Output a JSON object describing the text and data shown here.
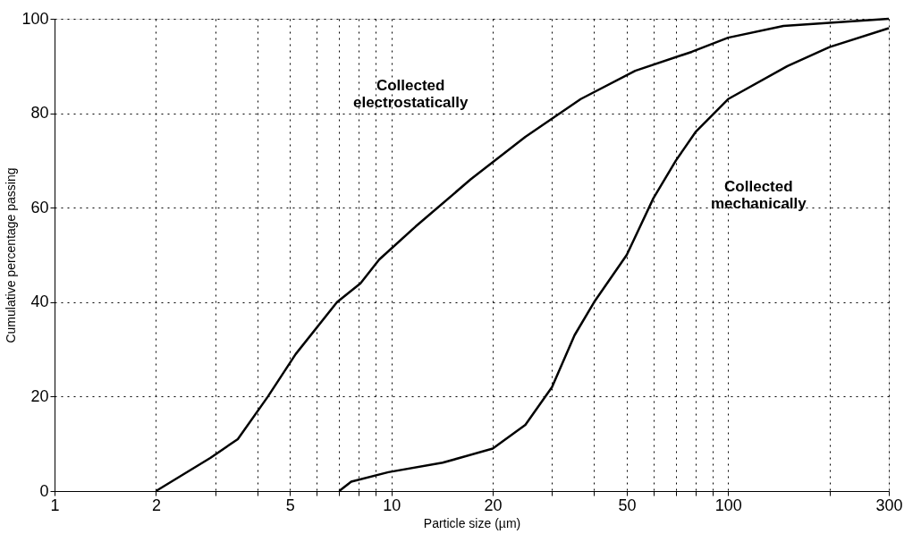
{
  "chart_data": {
    "type": "line",
    "xlabel": "Particle size (µm)",
    "ylabel": "Cumulative percentage passing",
    "log": "x",
    "grid": true,
    "line_style": "solid",
    "marker": "none",
    "xlim": [
      1,
      300
    ],
    "ylim": [
      0,
      100
    ],
    "xticks": [
      1,
      2,
      {
        "value": 3,
        "label": null
      },
      {
        "value": 4,
        "label": null
      },
      5,
      {
        "value": 6,
        "label": null
      },
      {
        "value": 7,
        "label": null
      },
      {
        "value": 8,
        "label": null
      },
      {
        "value": 9,
        "label": null
      },
      10,
      20,
      {
        "value": 30,
        "label": null
      },
      {
        "value": 40,
        "label": null
      },
      50,
      {
        "value": 60,
        "label": null
      },
      {
        "value": 70,
        "label": null
      },
      {
        "value": 80,
        "label": null
      },
      {
        "value": 90,
        "label": null
      },
      100,
      {
        "value": 200,
        "label": null
      },
      300
    ],
    "yticks": [
      0,
      20,
      40,
      60,
      80,
      100
    ],
    "series": [
      {
        "color": "#000000",
        "x": [
          2.0,
          2.9,
          3.5,
          4.3,
          5.2,
          6.9,
          8.1,
          9.2,
          11.8,
          17.2,
          25,
          36.5,
          53,
          78,
          100,
          146,
          300
        ],
        "values": [
          0,
          7,
          11,
          20,
          29,
          40,
          44,
          49,
          56,
          66,
          75,
          83,
          89,
          93,
          96,
          98.5,
          100
        ]
      },
      {
        "color": "#000000",
        "x": [
          7,
          7.6,
          9.8,
          14.2,
          20,
          25,
          30,
          35,
          40,
          50,
          60,
          70,
          80,
          100,
          150,
          200,
          300
        ],
        "values": [
          0,
          2,
          4,
          6,
          9,
          14,
          22,
          33,
          40,
          50,
          62,
          70,
          76,
          83,
          90,
          94,
          98
        ]
      }
    ],
    "annotations": [
      "Collected\nelectrostatically",
      "Collected\nmechanically"
    ]
  }
}
